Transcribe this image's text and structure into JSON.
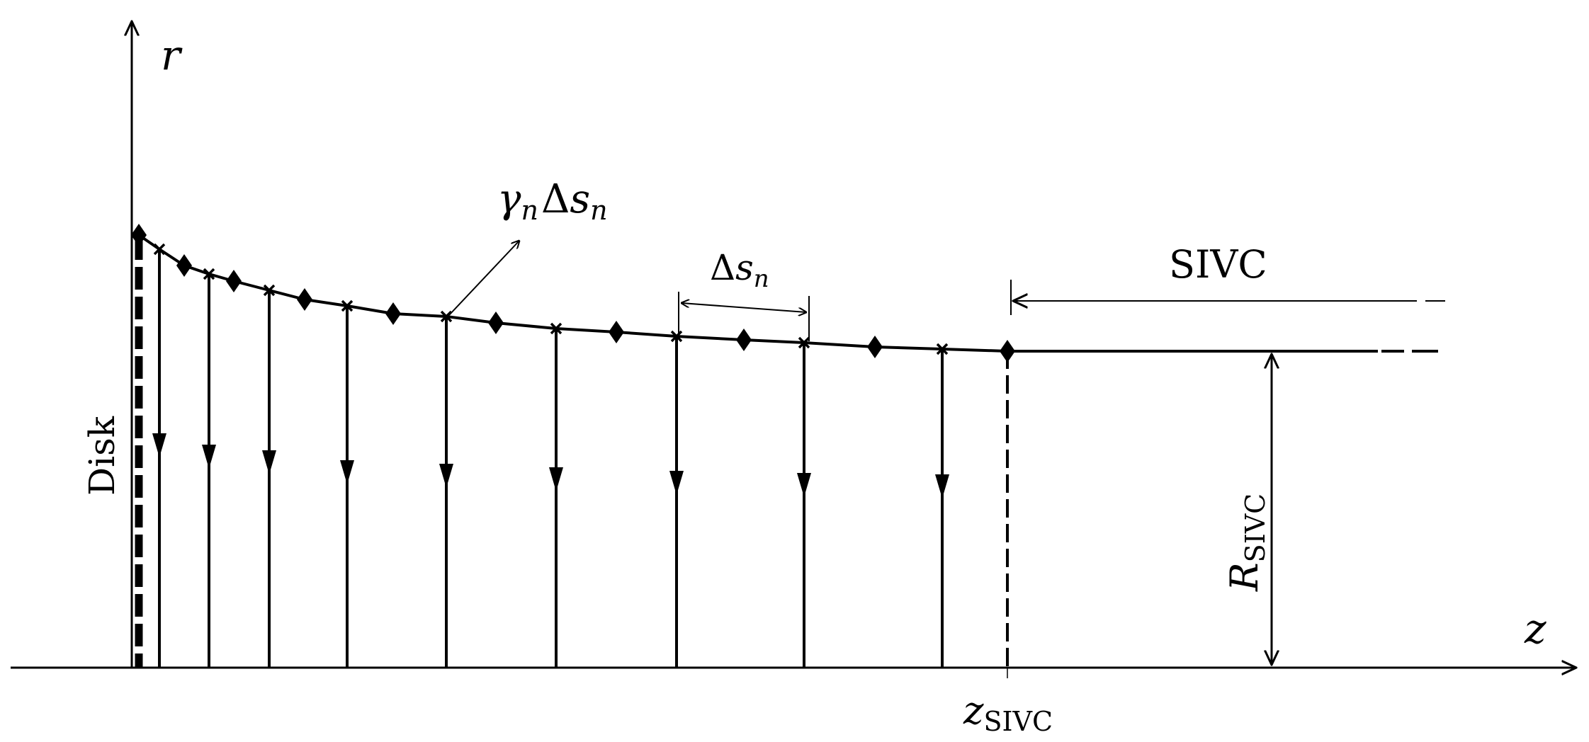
{
  "labels": {
    "r_axis": "r",
    "z_axis": "z",
    "disk": "Disk",
    "sivc": "SIVC",
    "gamma_symbol": "γ",
    "sub_n": "n",
    "delta": "Δ",
    "s": "s",
    "z_sivc_base": "z",
    "sivc_subscript": "SIVC",
    "r_sivc_base": "R"
  },
  "colors": {
    "ink": "#000000",
    "background": "#ffffff"
  },
  "icons": {
    "node_marker": "diamond",
    "control_point_marker": "cross",
    "flow_arrow": "arrowhead-down"
  }
}
